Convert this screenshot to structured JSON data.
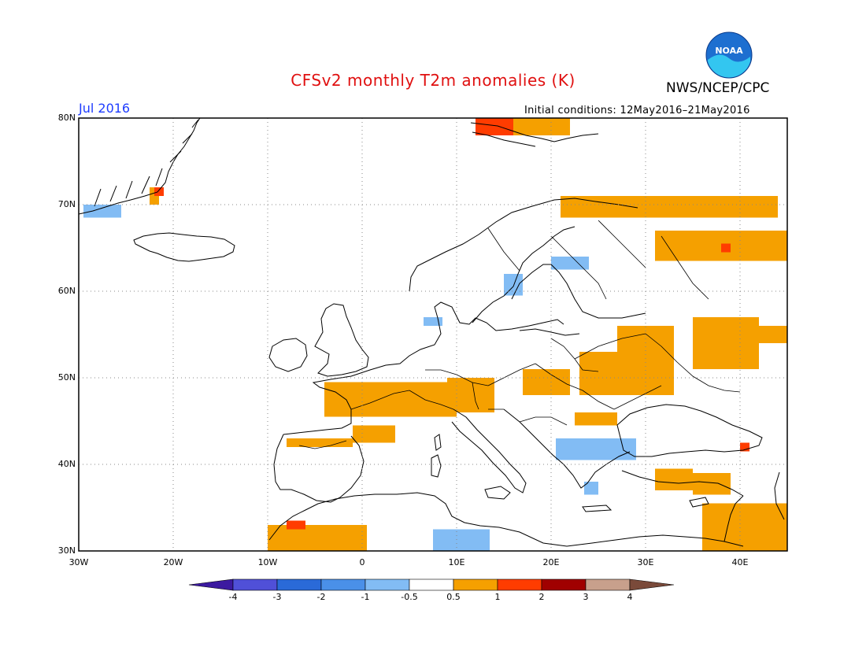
{
  "header": {
    "title": "CFSv2 monthly T2m anomalies (K)",
    "agency": "NWS/NCEP/CPC",
    "month": "Jul 2016",
    "initial_conditions": "Initial conditions: 12May2016–21May2016",
    "logo_text": "NOAA"
  },
  "map": {
    "lat_range": [
      30,
      80
    ],
    "lon_range": [
      -30,
      45
    ],
    "lat_ticks": [
      "30N",
      "40N",
      "50N",
      "60N",
      "70N",
      "80N"
    ],
    "lon_ticks": [
      "30W",
      "20W",
      "10W",
      "0",
      "10E",
      "20E",
      "30E",
      "40E"
    ],
    "grid": "dotted"
  },
  "colorbar": {
    "labels": [
      "-4",
      "-3",
      "-2",
      "-1",
      "-0.5",
      "0.5",
      "1",
      "2",
      "3",
      "4"
    ],
    "colors": [
      "#3c1aa0",
      "#5050d8",
      "#2a6ad8",
      "#4a90e8",
      "#82bcf4",
      "#ffffff",
      "#f5a000",
      "#ff3c00",
      "#a00000",
      "#c8a08c",
      "#7a4a3a"
    ]
  },
  "anomalies": [
    {
      "category": "0.5-1",
      "color": "#f5a000",
      "regions": [
        {
          "lon": [
            -4,
            10
          ],
          "lat": [
            45.5,
            49.5
          ]
        },
        {
          "lon": [
            9,
            14
          ],
          "lat": [
            46,
            50
          ]
        },
        {
          "lon": [
            17,
            22
          ],
          "lat": [
            48,
            51
          ]
        },
        {
          "lon": [
            23,
            33
          ],
          "lat": [
            48,
            53
          ]
        },
        {
          "lon": [
            27,
            33
          ],
          "lat": [
            53,
            56
          ]
        },
        {
          "lon": [
            35,
            42
          ],
          "lat": [
            51,
            57
          ]
        },
        {
          "lon": [
            42,
            45
          ],
          "lat": [
            54,
            56
          ]
        },
        {
          "lon": [
            21,
            44
          ],
          "lat": [
            68.5,
            71
          ]
        },
        {
          "lon": [
            31,
            45
          ],
          "lat": [
            63.5,
            67
          ]
        },
        {
          "lon": [
            -1,
            3.5
          ],
          "lat": [
            42.5,
            44.5
          ]
        },
        {
          "lon": [
            -8,
            -1
          ],
          "lat": [
            42,
            43
          ]
        },
        {
          "lon": [
            -10,
            -2
          ],
          "lat": [
            30,
            33
          ]
        },
        {
          "lon": [
            -2,
            0.5
          ],
          "lat": [
            30,
            33
          ]
        },
        {
          "lon": [
            36,
            45
          ],
          "lat": [
            30,
            35.5
          ]
        },
        {
          "lon": [
            31,
            35
          ],
          "lat": [
            37,
            39.5
          ]
        },
        {
          "lon": [
            35,
            39
          ],
          "lat": [
            36.5,
            39
          ]
        },
        {
          "lon": [
            22.5,
            27
          ],
          "lat": [
            44.5,
            46
          ]
        },
        {
          "lon": [
            16,
            22
          ],
          "lat": [
            78,
            80
          ]
        },
        {
          "lon": [
            -22.5,
            -21.5
          ],
          "lat": [
            70,
            72
          ]
        }
      ]
    },
    {
      "category": "1-2",
      "color": "#ff3c00",
      "regions": [
        {
          "lon": [
            -8,
            -6
          ],
          "lat": [
            32.5,
            33.5
          ]
        },
        {
          "lon": [
            12,
            16
          ],
          "lat": [
            78,
            80
          ]
        },
        {
          "lon": [
            -22,
            -21
          ],
          "lat": [
            71,
            72
          ]
        },
        {
          "lon": [
            40,
            41
          ],
          "lat": [
            41.5,
            42.5
          ]
        },
        {
          "lon": [
            38,
            39
          ],
          "lat": [
            64.5,
            65.5
          ]
        }
      ]
    },
    {
      "category": "-0.5 to -1",
      "color": "#82bcf4",
      "regions": [
        {
          "lon": [
            20.5,
            29
          ],
          "lat": [
            40.5,
            43
          ]
        },
        {
          "lon": [
            7.5,
            13.5
          ],
          "lat": [
            30,
            32.5
          ]
        },
        {
          "lon": [
            15,
            17
          ],
          "lat": [
            59.5,
            62
          ]
        },
        {
          "lon": [
            20,
            24
          ],
          "lat": [
            62.5,
            64
          ]
        },
        {
          "lon": [
            -29.5,
            -25.5
          ],
          "lat": [
            68.5,
            70
          ]
        },
        {
          "lon": [
            6.5,
            8.5
          ],
          "lat": [
            56,
            57
          ]
        },
        {
          "lon": [
            23.5,
            25
          ],
          "lat": [
            36.5,
            38
          ]
        }
      ]
    }
  ]
}
